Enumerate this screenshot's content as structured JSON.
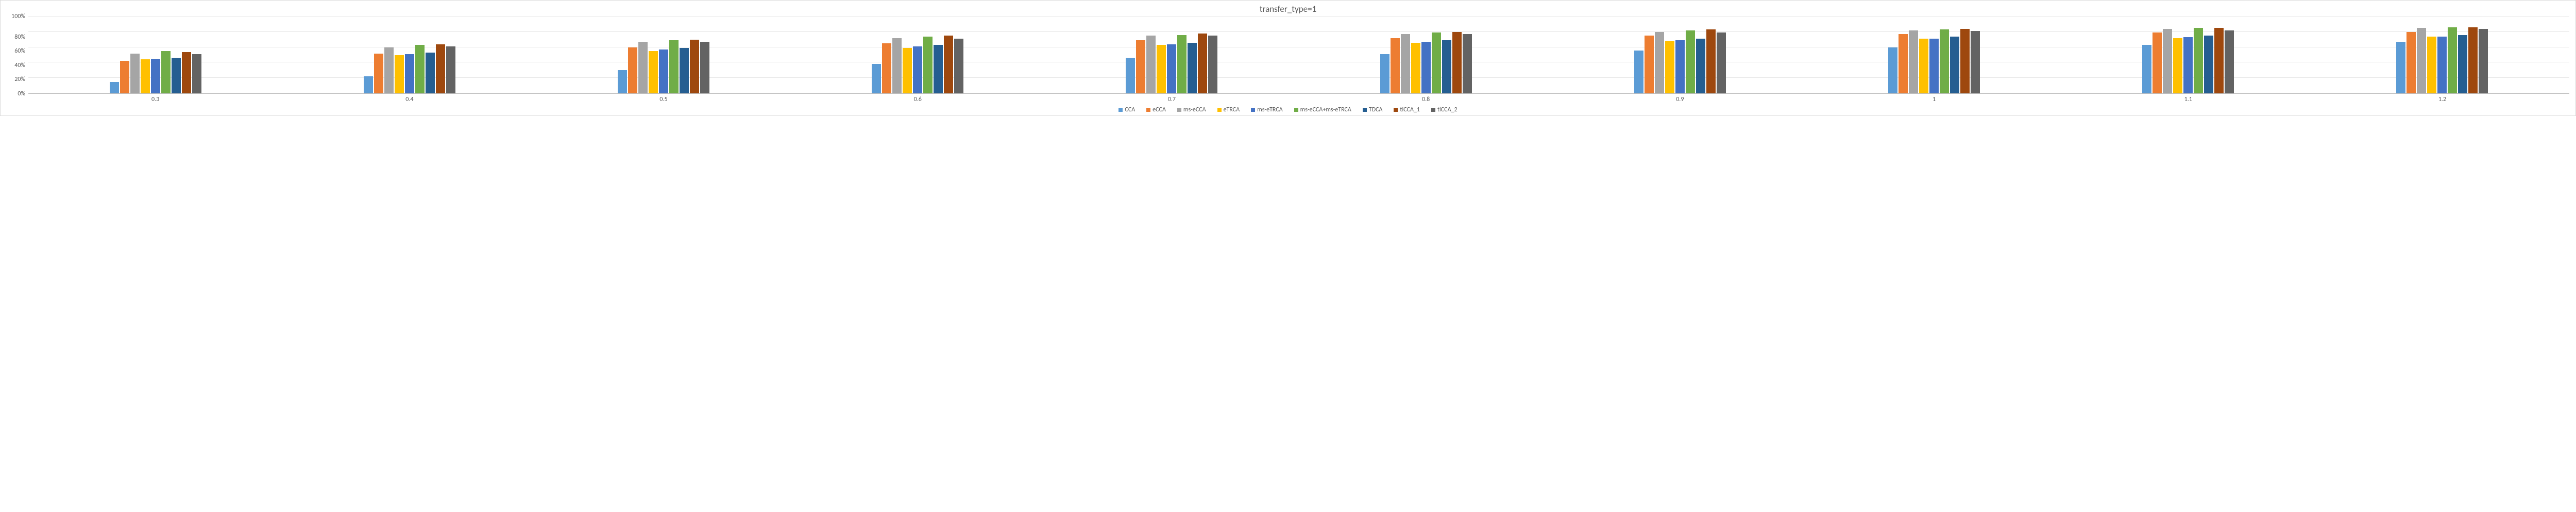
{
  "chart": {
    "type": "bar",
    "title": "transfer_type=1",
    "title_fontsize": 17,
    "title_color": "#595959",
    "label_fontsize": 12,
    "label_color": "#595959",
    "background_color": "#ffffff",
    "border_color": "#d9d9d9",
    "grid_color": "#e6e6e6",
    "axis_line_color": "#bfbfbf",
    "ylim": [
      0,
      100
    ],
    "ytick_step": 20,
    "yticks": [
      "100%",
      "80%",
      "60%",
      "40%",
      "20%",
      "0%"
    ],
    "categories": [
      "0.3",
      "0.4",
      "0.5",
      "0.6",
      "0.7",
      "0.8",
      "0.9",
      "1",
      "1.1",
      "1.2"
    ],
    "series": [
      {
        "name": "CCA",
        "color": "#5b9bd5",
        "values": [
          15,
          22,
          30,
          38,
          46,
          51,
          56,
          60,
          63,
          67
        ]
      },
      {
        "name": "eCCA",
        "color": "#ed7d31",
        "values": [
          42,
          52,
          60,
          65,
          69,
          72,
          75,
          77,
          79,
          80
        ]
      },
      {
        "name": "ms-eCCA",
        "color": "#a5a5a5",
        "values": [
          52,
          60,
          67,
          72,
          75,
          77,
          80,
          82,
          84,
          85
        ]
      },
      {
        "name": "eTRCA",
        "color": "#ffc000",
        "values": [
          44,
          50,
          55,
          59,
          63,
          66,
          68,
          71,
          72,
          74
        ]
      },
      {
        "name": "ms-eTRCA",
        "color": "#4472c4",
        "values": [
          45,
          51,
          57,
          61,
          64,
          67,
          69,
          71,
          73,
          74
        ]
      },
      {
        "name": "ms-eCCA+ms-eTRCA",
        "color": "#70ad47",
        "values": [
          55,
          63,
          69,
          74,
          76,
          79,
          82,
          83,
          85,
          86
        ]
      },
      {
        "name": "TDCA",
        "color": "#255e91",
        "values": [
          46,
          53,
          59,
          63,
          66,
          69,
          71,
          74,
          75,
          76
        ]
      },
      {
        "name": "tlCCA_1",
        "color": "#9e480e",
        "values": [
          54,
          64,
          70,
          75,
          78,
          80,
          83,
          84,
          85,
          86
        ]
      },
      {
        "name": "tlCCA_2",
        "color": "#636363",
        "values": [
          51,
          61,
          67,
          71,
          75,
          77,
          79,
          81,
          82,
          84
        ]
      }
    ]
  }
}
